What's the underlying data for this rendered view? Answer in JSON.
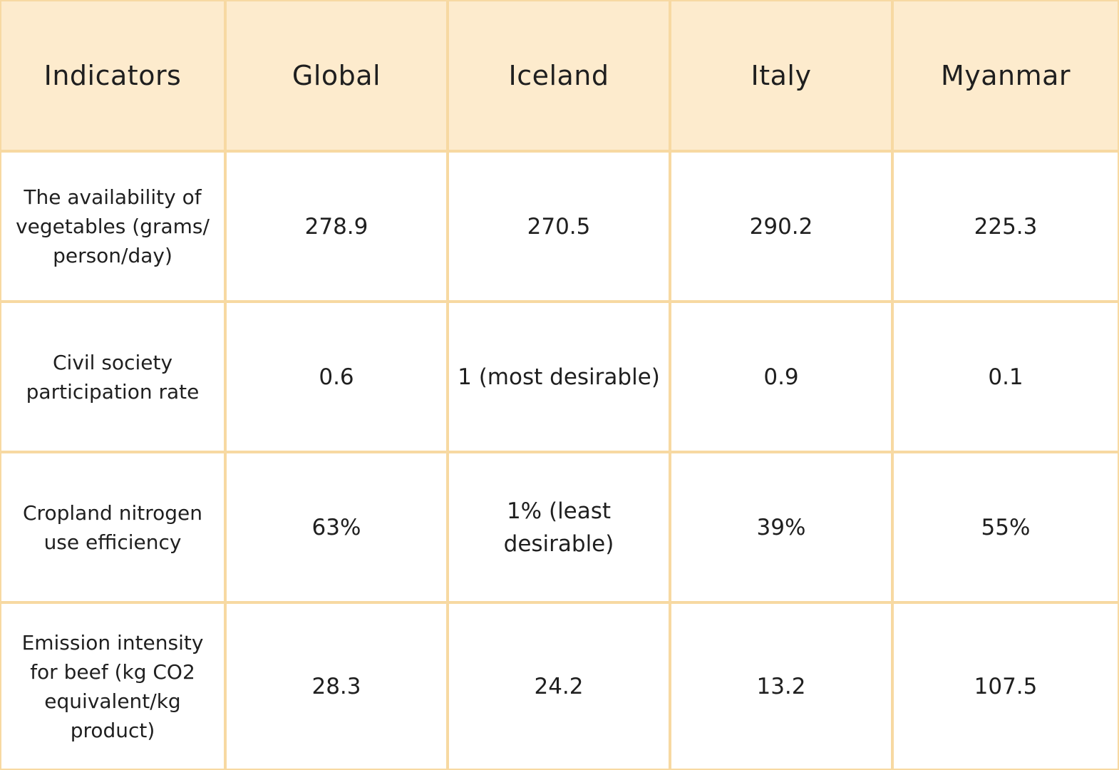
{
  "chart_data": {
    "type": "table",
    "columns": [
      "Indicators",
      "Global",
      "Iceland",
      "Italy",
      "Myanmar"
    ],
    "rows": [
      {
        "indicator": "The availability of vegetables (grams/ person/day)",
        "values": [
          "278.9",
          "270.5",
          "290.2",
          "225.3"
        ]
      },
      {
        "indicator": "Civil society participation rate",
        "values": [
          "0.6",
          "1 (most desirable)",
          "0.9",
          "0.1"
        ]
      },
      {
        "indicator": "Cropland nitrogen use efficiency",
        "values": [
          "63%",
          "1% (least desirable)",
          "39%",
          "55%"
        ]
      },
      {
        "indicator": "Emission intensity for beef (kg CO2 equivalent/kg product)",
        "values": [
          "28.3",
          "24.2",
          "13.2",
          "107.5"
        ]
      }
    ]
  },
  "colors": {
    "header_background": "#fdebcd",
    "border": "#f7d9a2",
    "cell_background": "#ffffff",
    "text": "#1f1f1f"
  }
}
